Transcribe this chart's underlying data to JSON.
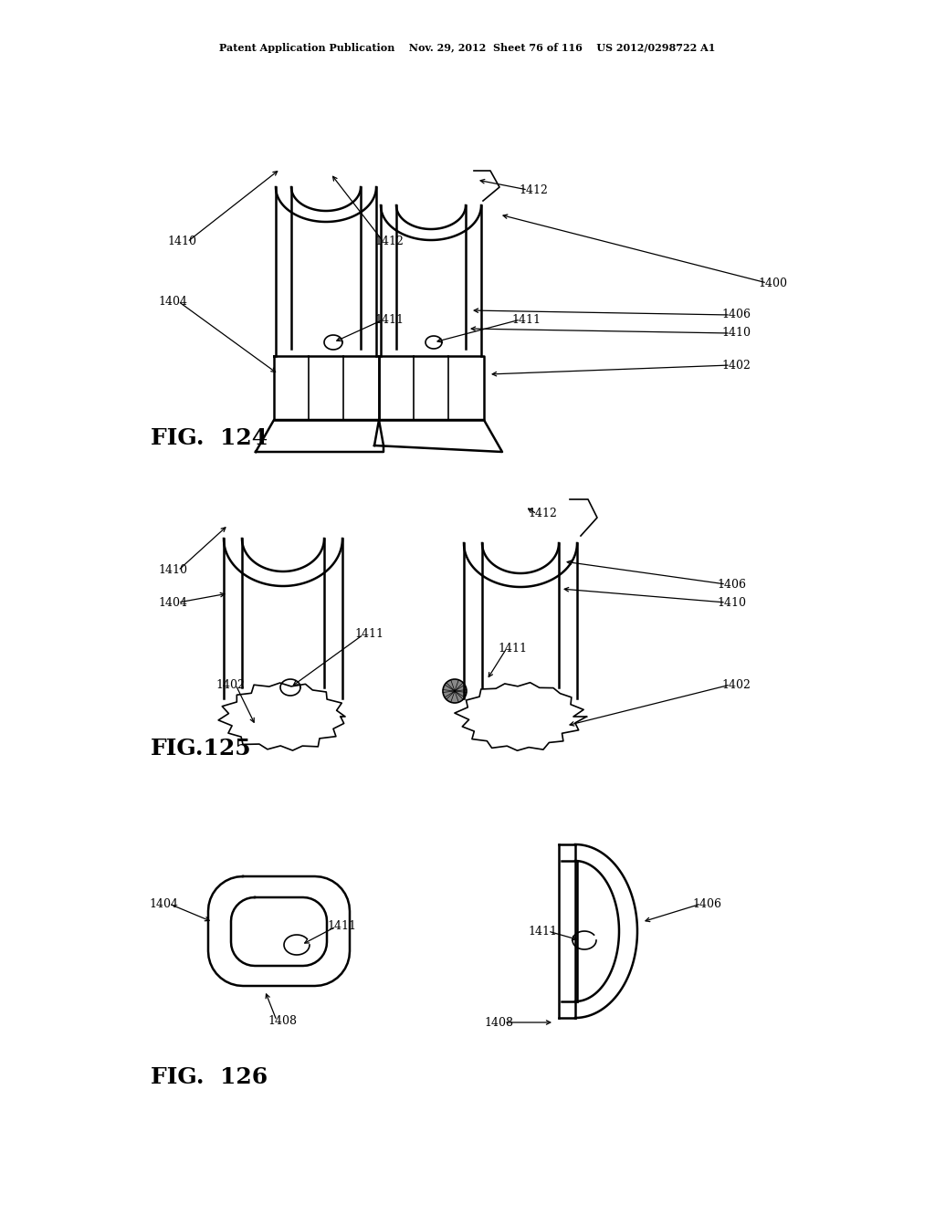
{
  "bg_color": "#ffffff",
  "text_color": "#000000",
  "line_color": "#000000",
  "header_text": "Patent Application Publication    Nov. 29, 2012  Sheet 76 of 116    US 2012/0298722 A1",
  "fig124_label": "FIG.  124",
  "fig125_label": "FIG.125",
  "fig126_label": "FIG.  126"
}
